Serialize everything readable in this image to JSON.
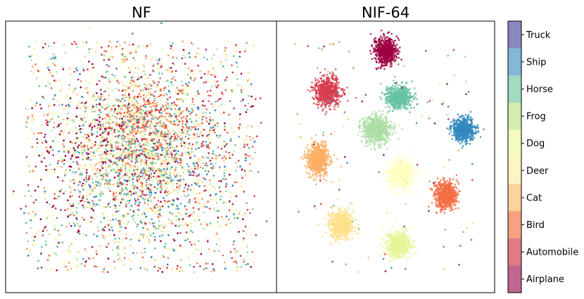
{
  "chart_data": [
    {
      "type": "scatter",
      "title": "NF",
      "xlabel": "",
      "ylabel": "",
      "grid": false,
      "axis_ticks": false,
      "note": "t-SNE-style embedding; classes heavily intermixed in two overlapping lobes",
      "series": [
        {
          "name": "Airplane",
          "color": "#9e0142",
          "center": [
            -0.25,
            0.05
          ],
          "spread": [
            0.55,
            0.55
          ]
        },
        {
          "name": "Automobile",
          "color": "#d53e4f",
          "center": [
            0.2,
            0.05
          ],
          "spread": [
            0.55,
            0.55
          ]
        },
        {
          "name": "Bird",
          "color": "#f46d43",
          "center": [
            0.05,
            0.3
          ],
          "spread": [
            0.35,
            0.3
          ]
        },
        {
          "name": "Cat",
          "color": "#fdae61",
          "center": [
            -0.05,
            0.0
          ],
          "spread": [
            0.55,
            0.55
          ]
        },
        {
          "name": "Deer",
          "color": "#fee08b",
          "center": [
            0.0,
            -0.05
          ],
          "spread": [
            0.6,
            0.6
          ]
        },
        {
          "name": "Dog",
          "color": "#ffffbf",
          "center": [
            0.0,
            0.0
          ],
          "spread": [
            0.6,
            0.6
          ]
        },
        {
          "name": "Frog",
          "color": "#e6f598",
          "center": [
            -0.1,
            0.15
          ],
          "spread": [
            0.55,
            0.5
          ]
        },
        {
          "name": "Horse",
          "color": "#abdda4",
          "center": [
            0.0,
            0.1
          ],
          "spread": [
            0.55,
            0.5
          ]
        },
        {
          "name": "Ship",
          "color": "#66c2a5",
          "center": [
            0.0,
            -0.05
          ],
          "spread": [
            0.55,
            0.55
          ]
        },
        {
          "name": "Truck",
          "color": "#3288bd",
          "center": [
            0.05,
            0.0
          ],
          "spread": [
            0.55,
            0.55
          ]
        }
      ]
    },
    {
      "type": "scatter",
      "title": "NIF-64",
      "xlabel": "",
      "ylabel": "",
      "grid": false,
      "axis_ticks": false,
      "note": "t-SNE-style embedding; classes form well-separated clusters",
      "series": [
        {
          "name": "Airplane",
          "color": "#9e0142",
          "center": [
            0.0,
            0.78
          ],
          "spread": [
            0.1,
            0.1
          ]
        },
        {
          "name": "Automobile",
          "color": "#d53e4f",
          "center": [
            -0.53,
            0.48
          ],
          "spread": [
            0.12,
            0.1
          ]
        },
        {
          "name": "Bird",
          "color": "#f46d43",
          "center": [
            0.55,
            -0.28
          ],
          "spread": [
            0.1,
            0.1
          ]
        },
        {
          "name": "Cat",
          "color": "#fdae61",
          "center": [
            -0.62,
            -0.02
          ],
          "spread": [
            0.1,
            0.11
          ]
        },
        {
          "name": "Deer",
          "color": "#fee08b",
          "center": [
            -0.41,
            -0.5
          ],
          "spread": [
            0.11,
            0.1
          ]
        },
        {
          "name": "Dog",
          "color": "#ffffbf",
          "center": [
            0.14,
            -0.13
          ],
          "spread": [
            0.12,
            0.1
          ]
        },
        {
          "name": "Frog",
          "color": "#e6f598",
          "center": [
            0.12,
            -0.65
          ],
          "spread": [
            0.11,
            0.09
          ]
        },
        {
          "name": "Horse",
          "color": "#abdda4",
          "center": [
            -0.08,
            0.2
          ],
          "spread": [
            0.13,
            0.1
          ]
        },
        {
          "name": "Ship",
          "color": "#66c2a5",
          "center": [
            0.12,
            0.44
          ],
          "spread": [
            0.12,
            0.08
          ]
        },
        {
          "name": "Truck",
          "color": "#3288bd",
          "center": [
            0.72,
            0.2
          ],
          "spread": [
            0.1,
            0.08
          ]
        }
      ]
    }
  ],
  "colorbar": {
    "labels": [
      "Truck",
      "Ship",
      "Horse",
      "Frog",
      "Dog",
      "Deer",
      "Cat",
      "Bird",
      "Automobile",
      "Airplane"
    ],
    "colors": [
      "#8b87c1",
      "#82b7d8",
      "#a2d9c1",
      "#d2ecb0",
      "#f4f9c1",
      "#fcf4c2",
      "#fcd29b",
      "#f6a07f",
      "#e07b85",
      "#c06690"
    ]
  }
}
